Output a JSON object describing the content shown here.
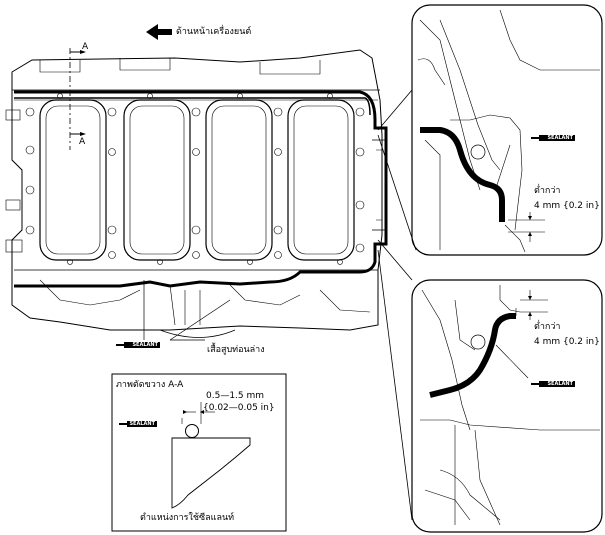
{
  "direction_label": "ด้านหน้าเครื่องยนต์",
  "section_marker": "A",
  "lower_cover_label": "เสื้อสูบท่อนล่าง",
  "sealant_label": "SEALANT",
  "detail_top": {
    "limit_label": "ต่ำกว่า",
    "dimension": "4 mm {0.2 in}"
  },
  "detail_bottom": {
    "limit_label": "ต่ำกว่า",
    "dimension": "4 mm {0.2 in}"
  },
  "section_view": {
    "title": "ภาพตัดขวาง A-A",
    "bead_mm": "0.5—1.5 mm",
    "bead_in": "{0.02—0.05 in}",
    "caption": "ตำแหน่งการใช้ซีลแลนท์"
  }
}
